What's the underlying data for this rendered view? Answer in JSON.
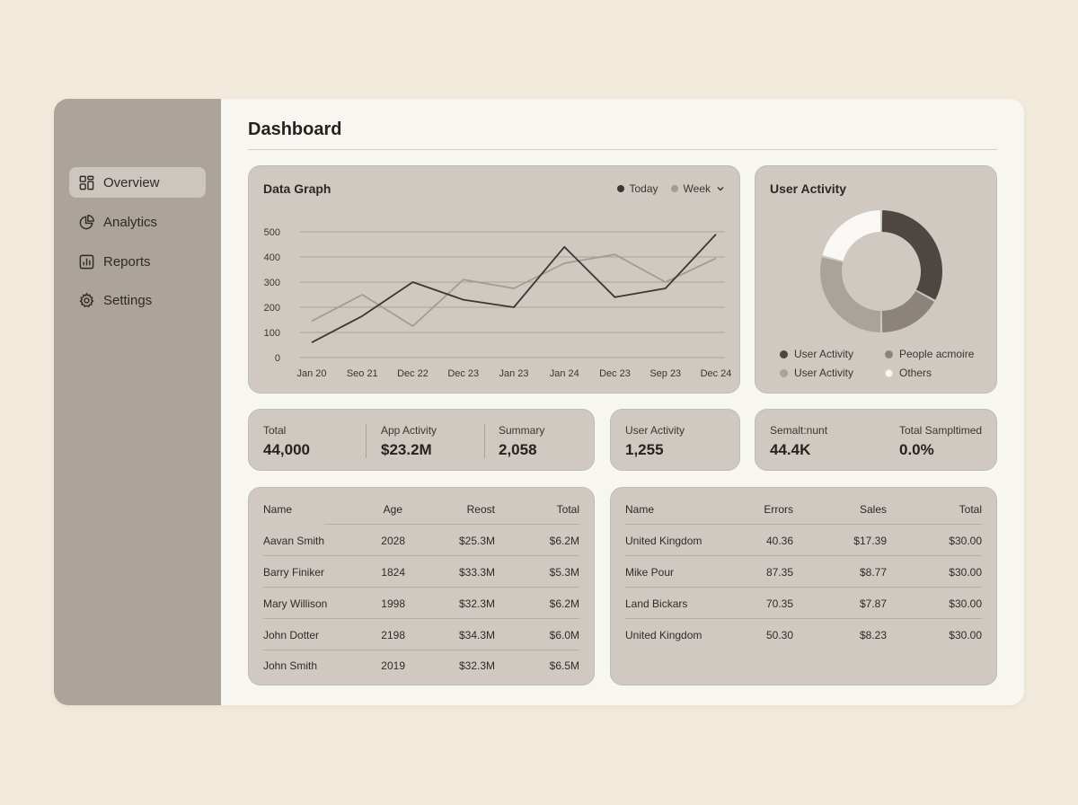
{
  "sidebar": {
    "items": [
      {
        "label": "Overview",
        "icon": "grid-icon",
        "active": true
      },
      {
        "label": "Analytics",
        "icon": "pie-chart-icon",
        "active": false
      },
      {
        "label": "Reports",
        "icon": "bar-chart-icon",
        "active": false
      },
      {
        "label": "Settings",
        "icon": "gear-icon",
        "active": false
      }
    ]
  },
  "header": {
    "title": "Dashboard"
  },
  "data_graph": {
    "title": "Data Graph",
    "legend_today": "Today",
    "legend_week": "Week"
  },
  "user_activity": {
    "title": "User Activity",
    "legend": [
      {
        "label": "User Activity",
        "color": "#4e4640"
      },
      {
        "label": "People acmoire",
        "color": "#8b837c"
      },
      {
        "label": "User Activity",
        "color": "#aaa39c"
      },
      {
        "label": "Others",
        "color": "#faf8f4"
      }
    ]
  },
  "stats": {
    "total_label": "Total",
    "total_value": "44,000",
    "app_label": "App Activity",
    "app_value": "$23.2M",
    "summary_label": "Summary",
    "summary_value": "2,058",
    "ua_label": "User Activity",
    "ua_value": "1,255",
    "semal_label": "Semalt:nunt",
    "semal_value": "44.4K",
    "tsamp_label": "Total Sampltimed",
    "tsamp_value": "0.0%"
  },
  "table1": {
    "headers": [
      "Name",
      "Age",
      "Reost",
      "Total"
    ],
    "rows": [
      [
        "Aavan Smith",
        "2028",
        "$25.3M",
        "$6.2M"
      ],
      [
        "Barry Finiker",
        "1824",
        "$33.3M",
        "$5.3M"
      ],
      [
        "Mary Willison",
        "1998",
        "$32.3M",
        "$6.2M"
      ],
      [
        "John Dotter",
        "2198",
        "$34.3M",
        "$6.0M"
      ],
      [
        "John Smith",
        "2019",
        "$32.3M",
        "$6.5M"
      ]
    ]
  },
  "table2": {
    "headers": [
      "Name",
      "Errors",
      "Sales",
      "Total"
    ],
    "rows": [
      [
        "United Kingdom",
        "40.36",
        "$17.39",
        "$30.00"
      ],
      [
        "Mike Pour",
        "87.35",
        "$8.77",
        "$30.00"
      ],
      [
        "Land Bickars",
        "70.35",
        "$7.87",
        "$30.00"
      ],
      [
        "United Kingdom",
        "50.30",
        "$8.23",
        "$30.00"
      ]
    ]
  },
  "chart_data": [
    {
      "type": "line",
      "title": "Data Graph",
      "categories": [
        "Jan 20",
        "Seo 21",
        "Dec 22",
        "Dec 23",
        "Jan 23",
        "Jan 24",
        "Dec 23",
        "Sep 23",
        "Dec 24"
      ],
      "ylim": [
        0,
        500
      ],
      "yticks": [
        0,
        100,
        200,
        300,
        400,
        500
      ],
      "grid": true,
      "series": [
        {
          "name": "Today",
          "color": "#3d3733",
          "values": [
            60,
            165,
            300,
            230,
            200,
            440,
            240,
            275,
            490
          ]
        },
        {
          "name": "Week",
          "color": "#a39b94",
          "values": [
            145,
            250,
            125,
            310,
            275,
            375,
            410,
            300,
            395
          ]
        }
      ]
    },
    {
      "type": "pie",
      "title": "User Activity",
      "slices": [
        {
          "label": "User Activity",
          "value": 33,
          "color": "#4e4640"
        },
        {
          "label": "People acmoire",
          "value": 17,
          "color": "#8b837c"
        },
        {
          "label": "User Activity",
          "value": 29,
          "color": "#aaa39c"
        },
        {
          "label": "Others",
          "value": 21,
          "color": "#faf8f4"
        }
      ]
    }
  ]
}
